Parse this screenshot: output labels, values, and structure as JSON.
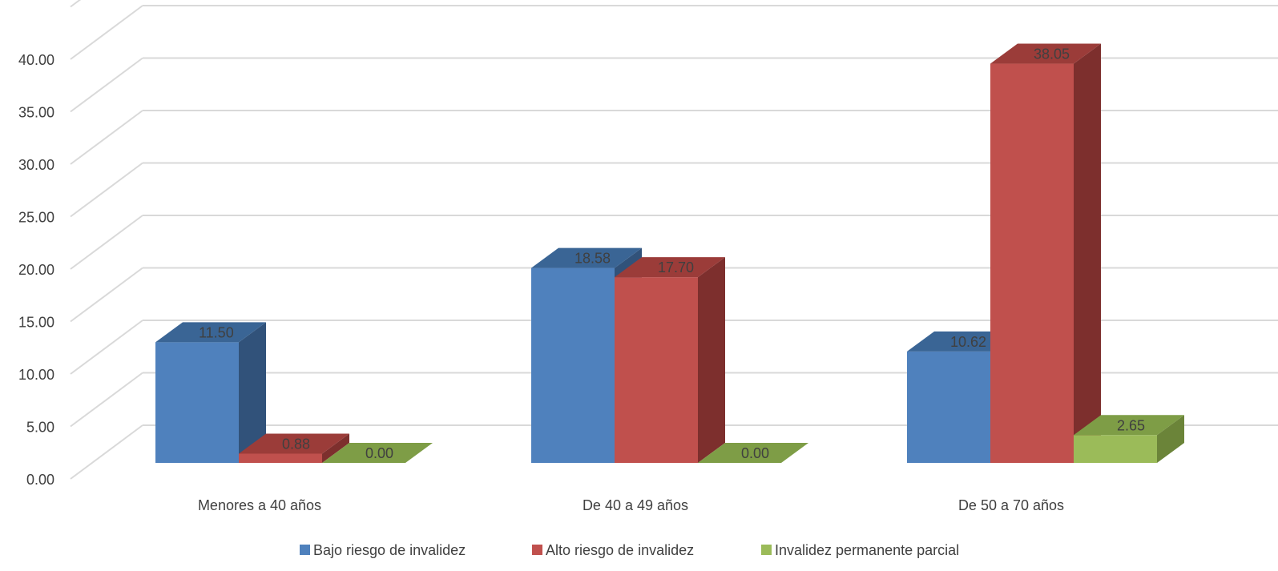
{
  "chart_data": {
    "type": "bar",
    "categories": [
      "Menores a 40 años",
      "De 40 a 49 años",
      "De 50 a 70 años"
    ],
    "series": [
      {
        "name": "Bajo riesgo de invalidez",
        "values": [
          11.5,
          18.58,
          10.62
        ],
        "labels": [
          "11.50",
          "18.58",
          "10.62"
        ]
      },
      {
        "name": "Alto riesgo de invalidez",
        "values": [
          0.88,
          17.7,
          38.05
        ],
        "labels": [
          "0.88",
          "17.70",
          "38.05"
        ]
      },
      {
        "name": "Invalidez permanente parcial",
        "values": [
          0.0,
          0.0,
          2.65
        ],
        "labels": [
          "0.00",
          "0.00",
          "2.65"
        ]
      }
    ],
    "yticks": [
      "0.00",
      "5.00",
      "10.00",
      "15.00",
      "20.00",
      "25.00",
      "30.00",
      "35.00",
      "40.00"
    ],
    "ylim": [
      0,
      45
    ],
    "grid": true,
    "legend_position": "bottom",
    "style": "3d-clustered-column",
    "colors": {
      "series": [
        "#4F81BD",
        "#C0504D",
        "#9BBB59"
      ],
      "top": [
        "#3A6595",
        "#9B3C39",
        "#7E9D46"
      ],
      "side": [
        "#31527A",
        "#7D2F2D",
        "#6B8439"
      ],
      "grid": "#D9D9D9",
      "text": "#404040"
    }
  }
}
